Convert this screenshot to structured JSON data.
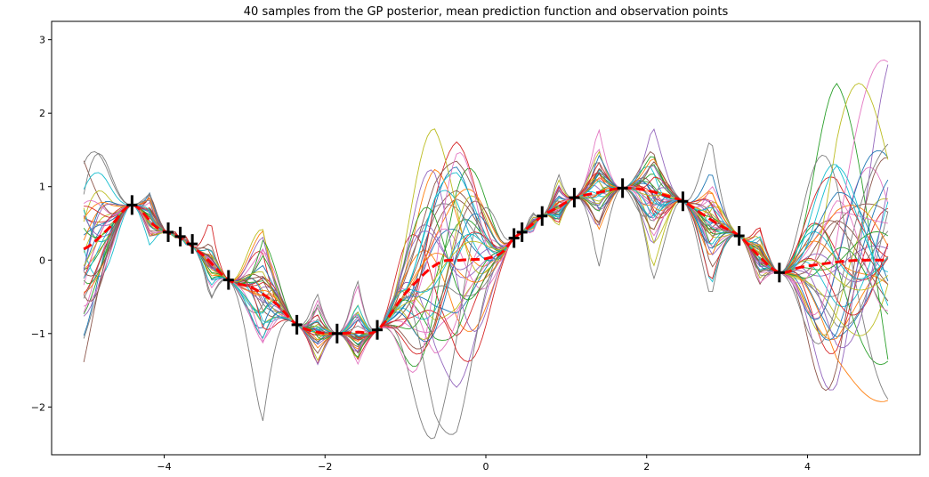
{
  "chart_data": {
    "type": "line",
    "title": "40 samples from the GP posterior, mean prediction function and observation points",
    "xlabel": "",
    "ylabel": "",
    "xlim": [
      -5.4,
      5.4
    ],
    "ylim": [
      -2.65,
      3.25
    ],
    "x_ticks": [
      -4,
      -2,
      0,
      2,
      4
    ],
    "y_ticks": [
      -2,
      -1,
      0,
      1,
      2,
      3
    ],
    "grid": false,
    "legend": "none",
    "n_samples": 40,
    "sample_colors": [
      "#1f77b4",
      "#ff7f0e",
      "#2ca02c",
      "#d62728",
      "#9467bd",
      "#8c564b",
      "#e377c2",
      "#7f7f7f",
      "#bcbd22",
      "#17becf"
    ],
    "mean_color": "#ff0000",
    "observation_color": "#000000",
    "observations": {
      "x": [
        -4.4,
        -3.95,
        -3.8,
        -3.65,
        -3.2,
        -2.35,
        -1.85,
        -1.35,
        0.35,
        0.45,
        0.7,
        1.1,
        1.7,
        2.45,
        3.15,
        3.65
      ],
      "y": [
        0.75,
        0.38,
        0.32,
        0.22,
        -0.27,
        -0.88,
        -1.0,
        -0.95,
        0.3,
        0.38,
        0.6,
        0.85,
        0.98,
        0.8,
        0.33,
        -0.17
      ]
    },
    "mean": {
      "x": [
        -5.0,
        -4.7,
        -4.4,
        -4.1,
        -3.8,
        -3.5,
        -3.2,
        -2.9,
        -2.6,
        -2.35,
        -2.1,
        -1.85,
        -1.6,
        -1.35,
        -1.0,
        -0.6,
        -0.3,
        0.0,
        0.2,
        0.35,
        0.5,
        0.7,
        0.9,
        1.1,
        1.4,
        1.7,
        2.0,
        2.3,
        2.45,
        2.7,
        2.95,
        3.15,
        3.4,
        3.65,
        3.9,
        4.2,
        4.5,
        4.8,
        5.0
      ],
      "y": [
        0.15,
        0.42,
        0.75,
        0.45,
        0.3,
        0.05,
        -0.27,
        -0.38,
        -0.6,
        -0.88,
        -0.98,
        -1.0,
        -0.98,
        -0.95,
        -0.45,
        -0.05,
        0.0,
        0.02,
        0.1,
        0.3,
        0.42,
        0.6,
        0.72,
        0.85,
        0.92,
        0.98,
        0.95,
        0.86,
        0.8,
        0.62,
        0.45,
        0.33,
        0.05,
        -0.17,
        -0.1,
        -0.05,
        -0.01,
        0.0,
        0.0
      ]
    }
  }
}
